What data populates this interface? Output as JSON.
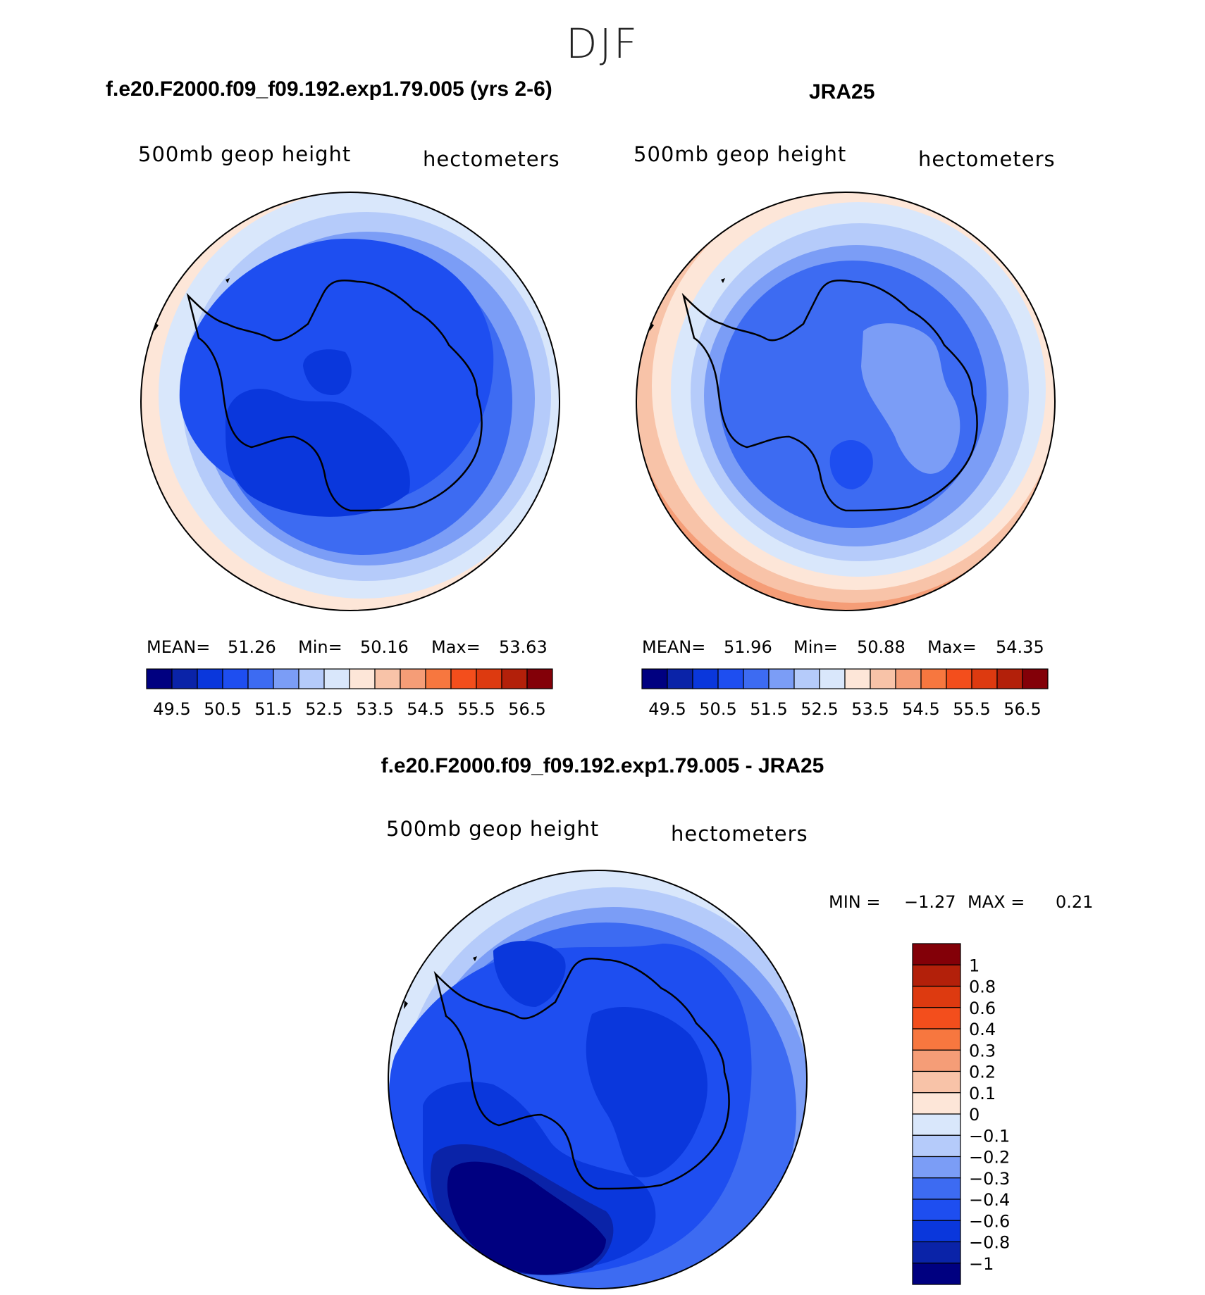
{
  "season": "DJF",
  "panels": [
    {
      "title": "f.e20.F2000.f09_f09.192.exp1.79.005 (yrs 2-6)",
      "variable": "500mb geop height",
      "units": "hectometers",
      "stats": {
        "mean_label": "MEAN=",
        "mean": "51.26",
        "min_label": "Min=",
        "min": "50.16",
        "max_label": "Max=",
        "max": "53.63"
      }
    },
    {
      "title": "JRA25",
      "variable": "500mb geop height",
      "units": "hectometers",
      "stats": {
        "mean_label": "MEAN=",
        "mean": "51.96",
        "min_label": "Min=",
        "min": "50.88",
        "max_label": "Max=",
        "max": "54.35"
      }
    },
    {
      "title": "f.e20.F2000.f09_f09.192.exp1.79.005 - JRA25",
      "variable": "500mb geop height",
      "units": "hectometers",
      "stats": {
        "min_label": "MIN =",
        "min": "−1.27",
        "max_label": "MAX =",
        "max": "0.21"
      }
    }
  ],
  "chart_data": [
    {
      "type": "heatmap",
      "projection": "south-polar stereographic",
      "title": "f.e20.F2000.f09_f09.192.exp1.79.005 (yrs 2-6)",
      "variable": "500mb geop height",
      "units": "hectometers",
      "mean": 51.26,
      "min": 50.16,
      "max": 53.63,
      "levels": [
        49.5,
        50,
        50.5,
        51,
        51.5,
        52,
        52.5,
        53,
        53.5,
        54,
        54.5,
        55,
        55.5,
        56,
        56.5
      ],
      "colorbar_labels": [
        "49.5",
        "50.5",
        "51.5",
        "52.5",
        "53.5",
        "54.5",
        "55.5",
        "56.5"
      ]
    },
    {
      "type": "heatmap",
      "projection": "south-polar stereographic",
      "title": "JRA25",
      "variable": "500mb geop height",
      "units": "hectometers",
      "mean": 51.96,
      "min": 50.88,
      "max": 54.35,
      "levels": [
        49.5,
        50,
        50.5,
        51,
        51.5,
        52,
        52.5,
        53,
        53.5,
        54,
        54.5,
        55,
        55.5,
        56,
        56.5
      ],
      "colorbar_labels": [
        "49.5",
        "50.5",
        "51.5",
        "52.5",
        "53.5",
        "54.5",
        "55.5",
        "56.5"
      ]
    },
    {
      "type": "heatmap",
      "projection": "south-polar stereographic",
      "title": "f.e20.F2000.f09_f09.192.exp1.79.005 - JRA25",
      "variable": "500mb geop height",
      "units": "hectometers",
      "min": -1.27,
      "max": 0.21,
      "levels": [
        -1,
        -0.8,
        -0.6,
        -0.4,
        -0.3,
        -0.2,
        -0.1,
        0,
        0.1,
        0.2,
        0.3,
        0.4,
        0.6,
        0.8,
        1
      ],
      "colorbar_labels": [
        "1",
        "0.8",
        "0.6",
        "0.4",
        "0.3",
        "0.2",
        "0.1",
        "0",
        "−0.1",
        "−0.2",
        "−0.3",
        "−0.4",
        "−0.6",
        "−0.8",
        "−1"
      ]
    }
  ],
  "colors": {
    "palette": [
      "#000080",
      "#0a23a8",
      "#0a37dc",
      "#1e4ef0",
      "#3d6bf2",
      "#7b9df6",
      "#b5cbfa",
      "#d9e7fb",
      "#fde6d8",
      "#f8c3a8",
      "#f59d77",
      "#f7773f",
      "#f34e1c",
      "#dd3a10",
      "#b3200a",
      "#830008"
    ]
  }
}
